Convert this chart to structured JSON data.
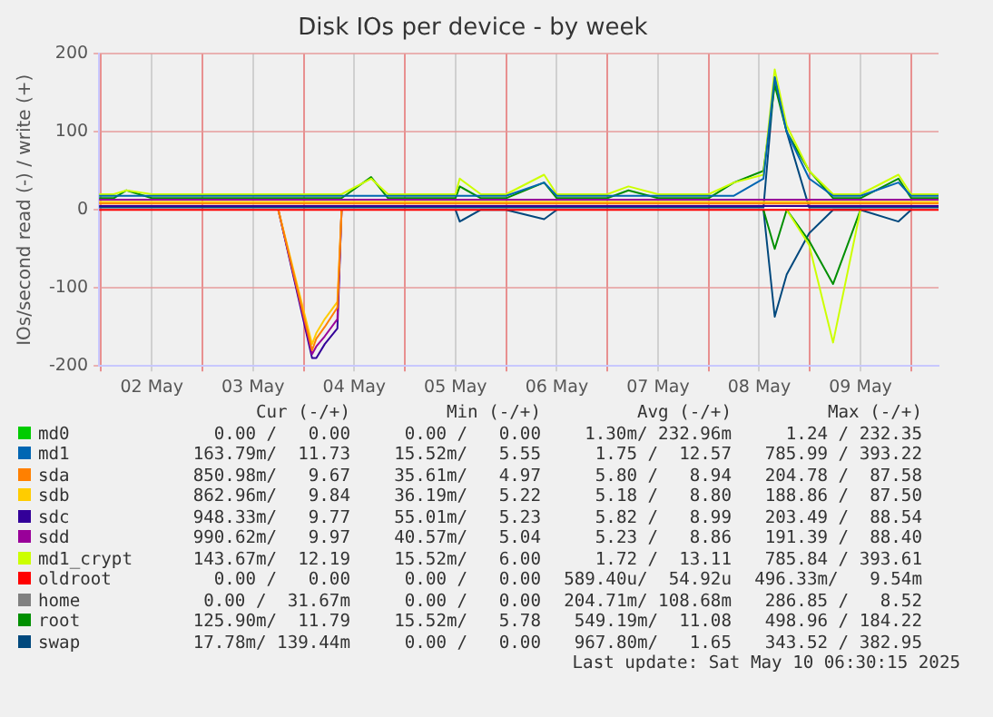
{
  "chart_data": {
    "type": "line",
    "title": "Disk IOs per device - by week",
    "ylabel": "IOs/second read (-) / write (+)",
    "x": [
      "2025-05-01T23:30",
      "2025-05-02T03:00",
      "2025-05-02T06:00",
      "2025-05-02T12:00",
      "2025-05-02T18:00",
      "2025-05-03T00:00",
      "2025-05-03T06:00",
      "2025-05-03T12:00",
      "2025-05-03T18:00",
      "2025-05-04T02:00",
      "2025-05-04T03:00",
      "2025-05-04T05:00",
      "2025-05-04T08:00",
      "2025-05-04T09:00",
      "2025-05-04T16:00",
      "2025-05-04T20:00",
      "2025-05-05T00:00",
      "2025-05-05T06:00",
      "2025-05-05T12:00",
      "2025-05-05T13:00",
      "2025-05-05T18:00",
      "2025-05-06T00:00",
      "2025-05-06T09:00",
      "2025-05-06T12:00",
      "2025-05-06T18:00",
      "2025-05-07T00:00",
      "2025-05-07T05:00",
      "2025-05-07T12:00",
      "2025-05-07T18:00",
      "2025-05-08T00:00",
      "2025-05-08T06:00",
      "2025-05-08T13:00",
      "2025-05-08T15:40",
      "2025-05-08T18:30",
      "2025-05-08T23:50",
      "2025-05-09T05:30",
      "2025-05-09T12:00",
      "2025-05-09T21:00",
      "2025-05-10T00:00",
      "2025-05-10T06:30"
    ],
    "xlim": [
      "2025-05-01T23:30",
      "2025-05-10T06:30"
    ],
    "xticks": [
      {
        "value": "2025-05-02T00:00",
        "label": null
      },
      {
        "value": "2025-05-02T12:00",
        "label": "02 May"
      },
      {
        "value": "2025-05-03T00:00",
        "label": null
      },
      {
        "value": "2025-05-03T12:00",
        "label": "03 May"
      },
      {
        "value": "2025-05-04T00:00",
        "label": null
      },
      {
        "value": "2025-05-04T12:00",
        "label": "04 May"
      },
      {
        "value": "2025-05-05T00:00",
        "label": null
      },
      {
        "value": "2025-05-05T12:00",
        "label": "05 May"
      },
      {
        "value": "2025-05-06T00:00",
        "label": null
      },
      {
        "value": "2025-05-06T12:00",
        "label": "06 May"
      },
      {
        "value": "2025-05-07T00:00",
        "label": null
      },
      {
        "value": "2025-05-07T12:00",
        "label": "07 May"
      },
      {
        "value": "2025-05-08T00:00",
        "label": null
      },
      {
        "value": "2025-05-08T12:00",
        "label": "08 May"
      },
      {
        "value": "2025-05-09T00:00",
        "label": null
      },
      {
        "value": "2025-05-09T12:00",
        "label": "09 May"
      },
      {
        "value": "2025-05-10T00:00",
        "label": null
      }
    ],
    "ylim": [
      -200,
      200
    ],
    "yticks": [
      -200,
      -100,
      0,
      100,
      200
    ],
    "grid": true,
    "legend": "bottom",
    "marker": "none",
    "series": [
      {
        "name": "md0",
        "color": "#00cc00",
        "values": [
          null,
          null,
          null,
          null,
          null,
          null,
          null,
          null,
          null,
          null,
          null,
          null,
          null,
          null,
          null,
          null,
          null,
          null,
          null,
          null,
          null,
          null,
          null,
          null,
          null,
          null,
          null,
          null,
          null,
          null,
          null,
          null,
          null,
          null,
          null,
          null,
          null,
          null,
          null,
          null
        ]
      },
      {
        "name": "md1",
        "color": "#0066b3",
        "values": [
          18,
          18,
          18,
          18,
          18,
          18,
          18,
          18,
          18,
          18,
          18,
          18,
          18,
          18,
          18,
          18,
          18,
          18,
          18,
          18,
          18,
          18,
          35,
          18,
          18,
          18,
          18,
          18,
          18,
          18,
          18,
          40,
          170,
          100,
          40,
          18,
          18,
          35,
          18,
          18
        ]
      },
      {
        "name": "sda",
        "color": "#ff8000",
        "values": [
          8,
          8,
          8,
          8,
          8,
          8,
          8,
          8,
          8,
          8,
          8,
          8,
          8,
          8,
          8,
          8,
          8,
          8,
          8,
          8,
          8,
          8,
          8,
          8,
          8,
          8,
          8,
          8,
          8,
          8,
          8,
          8,
          8,
          8,
          8,
          8,
          8,
          8,
          8,
          8
        ]
      },
      {
        "name": "sdb",
        "color": "#ffcc00",
        "values": [
          10,
          10,
          10,
          10,
          10,
          10,
          10,
          10,
          10,
          10,
          10,
          10,
          10,
          10,
          10,
          10,
          10,
          10,
          10,
          10,
          10,
          10,
          10,
          10,
          10,
          10,
          10,
          10,
          10,
          10,
          10,
          10,
          10,
          10,
          10,
          10,
          10,
          10,
          10,
          10
        ]
      },
      {
        "name": "sdc",
        "color": "#330099",
        "values": [
          5,
          5,
          5,
          5,
          5,
          5,
          5,
          5,
          5,
          5,
          5,
          5,
          5,
          5,
          5,
          5,
          5,
          5,
          5,
          5,
          5,
          5,
          5,
          5,
          5,
          5,
          5,
          5,
          5,
          5,
          5,
          5,
          5,
          5,
          5,
          5,
          5,
          5,
          5,
          5
        ]
      },
      {
        "name": "sdd",
        "color": "#990099",
        "values": [
          13,
          13,
          13,
          13,
          13,
          13,
          13,
          13,
          13,
          13,
          13,
          13,
          13,
          13,
          13,
          13,
          13,
          13,
          13,
          13,
          13,
          13,
          13,
          13,
          13,
          13,
          13,
          13,
          13,
          13,
          13,
          13,
          13,
          13,
          13,
          13,
          13,
          13,
          13,
          13
        ]
      },
      {
        "name": "md1_crypt",
        "color": "#ccff00",
        "values": [
          20,
          20,
          25,
          20,
          20,
          20,
          20,
          20,
          20,
          20,
          20,
          20,
          20,
          20,
          40,
          20,
          20,
          20,
          20,
          40,
          20,
          20,
          45,
          20,
          20,
          20,
          30,
          20,
          20,
          20,
          35,
          45,
          180,
          108,
          50,
          20,
          20,
          45,
          20,
          20
        ]
      },
      {
        "name": "oldroot",
        "color": "#ff0000",
        "values": [
          0,
          0,
          0,
          0,
          0,
          0,
          0,
          0,
          0,
          0,
          0,
          0,
          0,
          0,
          0,
          0,
          0,
          0,
          0,
          0,
          0,
          0,
          0,
          0,
          0,
          0,
          0,
          0,
          0,
          0,
          0,
          0,
          0,
          0,
          0,
          0,
          0,
          0,
          0,
          0
        ]
      },
      {
        "name": "home",
        "color": "#808080",
        "values": [
          null,
          null,
          null,
          null,
          null,
          null,
          null,
          null,
          null,
          null,
          null,
          null,
          null,
          null,
          null,
          null,
          null,
          null,
          null,
          null,
          null,
          null,
          null,
          null,
          null,
          null,
          null,
          null,
          null,
          null,
          null,
          null,
          null,
          null,
          null,
          null,
          null,
          null,
          null,
          null
        ]
      },
      {
        "name": "root",
        "color": "#008f00",
        "values": [
          15,
          15,
          25,
          15,
          15,
          15,
          15,
          15,
          15,
          15,
          15,
          15,
          15,
          15,
          42,
          15,
          15,
          15,
          15,
          30,
          15,
          15,
          35,
          15,
          15,
          15,
          25,
          15,
          15,
          15,
          35,
          50,
          160,
          100,
          50,
          15,
          15,
          40,
          15,
          15
        ]
      },
      {
        "name": "swap",
        "color": "#00487d",
        "values": [
          3,
          3,
          3,
          3,
          3,
          3,
          3,
          3,
          3,
          3,
          3,
          3,
          3,
          3,
          3,
          3,
          3,
          3,
          3,
          3,
          3,
          3,
          3,
          3,
          3,
          3,
          3,
          3,
          3,
          3,
          3,
          3,
          170,
          100,
          3,
          3,
          3,
          3,
          3,
          3
        ]
      },
      {
        "color": "#ff8000",
        "values": [
          null,
          null,
          null,
          null,
          null,
          null,
          null,
          null,
          0,
          -180,
          -165,
          -150,
          -125,
          0,
          null,
          null,
          null,
          null,
          null,
          null,
          null,
          null,
          null,
          null,
          null,
          null,
          null,
          null,
          null,
          null,
          null,
          null,
          null,
          null,
          null,
          null,
          null,
          null,
          null,
          null
        ]
      },
      {
        "color": "#ffcc00",
        "values": [
          null,
          null,
          null,
          null,
          null,
          null,
          null,
          null,
          0,
          -172,
          -158,
          -140,
          -118,
          0,
          null,
          null,
          null,
          null,
          null,
          null,
          null,
          null,
          null,
          null,
          null,
          null,
          null,
          null,
          null,
          null,
          null,
          null,
          null,
          null,
          null,
          null,
          null,
          null,
          null,
          null
        ]
      },
      {
        "color": "#990099",
        "values": [
          null,
          null,
          null,
          null,
          null,
          null,
          null,
          null,
          0,
          -185,
          -175,
          -162,
          -140,
          0,
          null,
          null,
          null,
          null,
          null,
          null,
          null,
          null,
          null,
          null,
          null,
          null,
          null,
          null,
          null,
          null,
          null,
          null,
          null,
          null,
          null,
          null,
          null,
          null,
          null,
          null
        ]
      },
      {
        "color": "#330099",
        "values": [
          null,
          null,
          null,
          null,
          null,
          null,
          null,
          null,
          0,
          -190,
          -190,
          -172,
          -152,
          0,
          null,
          null,
          null,
          null,
          null,
          null,
          null,
          null,
          null,
          null,
          null,
          null,
          null,
          null,
          null,
          null,
          null,
          null,
          null,
          null,
          null,
          null,
          null,
          null,
          null,
          null
        ]
      },
      {
        "color": "#ccff00",
        "values": [
          null,
          null,
          null,
          null,
          null,
          null,
          null,
          null,
          null,
          null,
          null,
          null,
          null,
          null,
          null,
          null,
          null,
          null,
          null,
          null,
          null,
          null,
          null,
          null,
          null,
          null,
          null,
          null,
          null,
          null,
          null,
          null,
          null,
          0,
          -45,
          -170,
          0,
          null,
          null,
          null
        ]
      },
      {
        "color": "#008f00",
        "values": [
          null,
          null,
          null,
          null,
          null,
          null,
          null,
          null,
          null,
          null,
          null,
          null,
          null,
          null,
          null,
          null,
          null,
          null,
          null,
          null,
          null,
          null,
          null,
          null,
          null,
          null,
          null,
          null,
          null,
          null,
          null,
          0,
          -50,
          0,
          -40,
          -95,
          0,
          null,
          null,
          null
        ]
      },
      {
        "color": "#00487d",
        "values": [
          null,
          null,
          null,
          null,
          null,
          null,
          null,
          null,
          null,
          null,
          null,
          null,
          null,
          null,
          null,
          null,
          null,
          null,
          0,
          -15,
          0,
          0,
          -12,
          0,
          null,
          null,
          null,
          null,
          null,
          null,
          null,
          0,
          -137,
          -83,
          -30,
          0,
          0,
          -15,
          0,
          null
        ]
      }
    ],
    "annotations": [
      "Cur (-/+)",
      "Min (-/+)",
      "Avg (-/+)",
      "Max (-/+)",
      "0.00 /   0.00",
      "0.00 /   0.00",
      "1.30m/ 232.96m",
      "1.24 / 232.35",
      "163.79m/  11.73",
      "15.52m/   5.55",
      "1.75 /  12.57",
      "785.99 / 393.22",
      "850.98m/   9.67",
      "35.61m/   4.97",
      "5.80 /   8.94",
      "204.78 /  87.58",
      "862.96m/   9.84",
      "36.19m/   5.22",
      "5.18 /   8.80",
      "188.86 /  87.50",
      "948.33m/   9.77",
      "55.01m/   5.23",
      "5.82 /   8.99",
      "203.49 /  88.54",
      "990.62m/   9.97",
      "40.57m/   5.04",
      "5.23 /   8.86",
      "191.39 /  88.40",
      "143.67m/  12.19",
      "15.52m/   6.00",
      "1.72 /  13.11",
      "785.84 / 393.61",
      "0.00 /   0.00",
      "0.00 /   0.00",
      "589.40u/  54.92u",
      "496.33m/   9.54m",
      "0.00 /  31.67m",
      "0.00 /   0.00",
      "204.71m/ 108.68m",
      "286.85 /   8.52",
      "125.90m/  11.79",
      "15.52m/   5.78",
      "549.19m/  11.08",
      "498.96 / 184.22",
      "17.78m/ 139.44m",
      "0.00 /   0.00",
      "967.80m/   1.65",
      "343.52 / 382.95",
      "Last update: Sat May 10 06:30:15 2025"
    ]
  }
}
